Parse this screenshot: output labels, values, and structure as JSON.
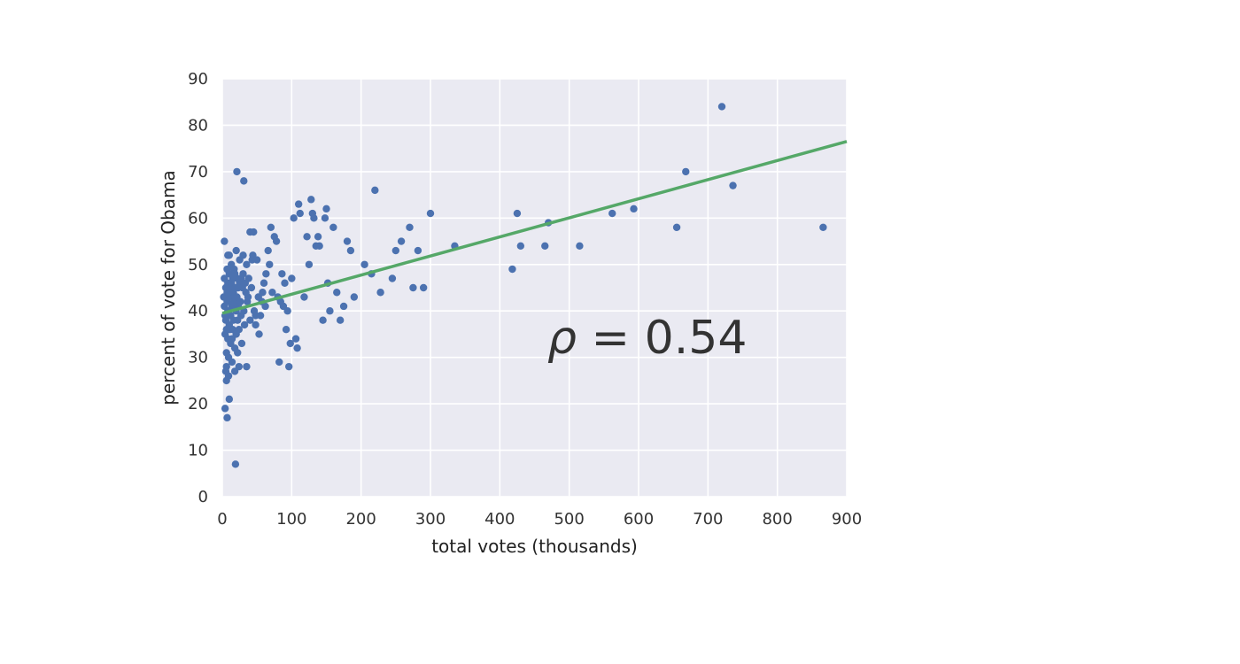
{
  "chart_data": {
    "type": "scatter",
    "title": "",
    "xlabel": "total votes (thousands)",
    "ylabel": "percent of vote for Obama",
    "xlim": [
      0,
      900
    ],
    "ylim": [
      0,
      90
    ],
    "xticks": [
      "0",
      "100",
      "200",
      "300",
      "400",
      "500",
      "600",
      "700",
      "800",
      "900"
    ],
    "yticks": [
      "0",
      "10",
      "20",
      "30",
      "40",
      "50",
      "60",
      "70",
      "80",
      "90"
    ],
    "grid": true,
    "annotation": {
      "symbol": "ρ",
      "text": " = 0.54"
    },
    "colors": {
      "points": "#4c72b0",
      "fit_line": "#55a868",
      "plot_bg": "#eaeaf2",
      "grid": "#ffffff"
    },
    "series": [
      {
        "kind": "points",
        "points": [
          [
            2,
            43
          ],
          [
            3,
            47
          ],
          [
            3,
            41
          ],
          [
            4,
            39
          ],
          [
            4,
            35
          ],
          [
            5,
            45
          ],
          [
            5,
            38
          ],
          [
            6,
            31
          ],
          [
            6,
            28
          ],
          [
            6,
            36
          ],
          [
            7,
            49
          ],
          [
            7,
            44
          ],
          [
            7,
            42
          ],
          [
            8,
            46
          ],
          [
            8,
            40
          ],
          [
            8,
            34
          ],
          [
            9,
            30
          ],
          [
            9,
            26
          ],
          [
            10,
            52
          ],
          [
            10,
            48
          ],
          [
            10,
            37
          ],
          [
            11,
            45
          ],
          [
            11,
            43
          ],
          [
            12,
            39
          ],
          [
            12,
            33
          ],
          [
            13,
            50
          ],
          [
            13,
            46
          ],
          [
            14,
            41
          ],
          [
            14,
            29
          ],
          [
            15,
            47
          ],
          [
            15,
            36
          ],
          [
            16,
            44
          ],
          [
            16,
            38
          ],
          [
            17,
            49
          ],
          [
            17,
            42
          ],
          [
            18,
            32
          ],
          [
            18,
            27
          ],
          [
            19,
            45
          ],
          [
            20,
            40
          ],
          [
            20,
            35
          ],
          [
            21,
            47
          ],
          [
            21,
            43
          ],
          [
            22,
            38
          ],
          [
            22,
            31
          ],
          [
            23,
            41
          ],
          [
            24,
            36
          ],
          [
            24,
            28
          ],
          [
            25,
            46
          ],
          [
            26,
            42
          ],
          [
            27,
            39
          ],
          [
            28,
            33
          ],
          [
            29,
            45
          ],
          [
            30,
            48
          ],
          [
            31,
            40
          ],
          [
            32,
            37
          ],
          [
            34,
            44
          ],
          [
            35,
            50
          ],
          [
            36,
            42
          ],
          [
            38,
            47
          ],
          [
            40,
            38
          ],
          [
            42,
            45
          ],
          [
            44,
            52
          ],
          [
            46,
            40
          ],
          [
            48,
            37
          ],
          [
            50,
            51
          ],
          [
            52,
            43
          ],
          [
            55,
            39
          ],
          [
            58,
            44
          ],
          [
            60,
            46
          ],
          [
            62,
            41
          ],
          [
            3,
            55
          ],
          [
            5,
            27
          ],
          [
            6,
            25
          ],
          [
            8,
            52
          ],
          [
            10,
            21
          ],
          [
            4,
            19
          ],
          [
            7,
            17
          ],
          [
            19,
            7
          ],
          [
            21,
            70
          ],
          [
            31,
            68
          ],
          [
            35,
            28
          ],
          [
            40,
            57
          ],
          [
            45,
            57
          ],
          [
            18,
            48
          ],
          [
            20,
            53
          ],
          [
            25,
            51
          ],
          [
            30,
            52
          ],
          [
            9,
            44
          ],
          [
            11,
            36
          ],
          [
            14,
            34
          ],
          [
            16,
            41
          ],
          [
            23,
            45
          ],
          [
            27,
            47
          ],
          [
            33,
            46
          ],
          [
            37,
            43
          ],
          [
            43,
            51
          ],
          [
            48,
            39
          ],
          [
            53,
            35
          ],
          [
            57,
            42
          ],
          [
            63,
            48
          ],
          [
            66,
            53
          ],
          [
            68,
            50
          ],
          [
            70,
            58
          ],
          [
            72,
            44
          ],
          [
            75,
            56
          ],
          [
            78,
            55
          ],
          [
            80,
            43
          ],
          [
            82,
            29
          ],
          [
            84,
            42
          ],
          [
            86,
            48
          ],
          [
            88,
            41
          ],
          [
            90,
            46
          ],
          [
            92,
            36
          ],
          [
            94,
            40
          ],
          [
            96,
            28
          ],
          [
            98,
            33
          ],
          [
            100,
            47
          ],
          [
            103,
            60
          ],
          [
            106,
            34
          ],
          [
            108,
            32
          ],
          [
            110,
            63
          ],
          [
            112,
            61
          ],
          [
            118,
            43
          ],
          [
            122,
            56
          ],
          [
            125,
            50
          ],
          [
            128,
            64
          ],
          [
            130,
            61
          ],
          [
            132,
            60
          ],
          [
            135,
            54
          ],
          [
            138,
            56
          ],
          [
            140,
            54
          ],
          [
            145,
            38
          ],
          [
            148,
            60
          ],
          [
            150,
            62
          ],
          [
            152,
            46
          ],
          [
            155,
            40
          ],
          [
            160,
            58
          ],
          [
            165,
            44
          ],
          [
            170,
            38
          ],
          [
            175,
            41
          ],
          [
            180,
            55
          ],
          [
            185,
            53
          ],
          [
            190,
            43
          ],
          [
            205,
            50
          ],
          [
            215,
            48
          ],
          [
            220,
            66
          ],
          [
            228,
            44
          ],
          [
            245,
            47
          ],
          [
            250,
            53
          ],
          [
            258,
            55
          ],
          [
            270,
            58
          ],
          [
            275,
            45
          ],
          [
            282,
            53
          ],
          [
            290,
            45
          ],
          [
            300,
            61
          ],
          [
            335,
            54
          ],
          [
            418,
            49
          ],
          [
            425,
            61
          ],
          [
            430,
            54
          ],
          [
            465,
            54
          ],
          [
            470,
            59
          ],
          [
            515,
            54
          ],
          [
            562,
            61
          ],
          [
            593,
            62
          ],
          [
            655,
            58
          ],
          [
            668,
            70
          ],
          [
            720,
            84
          ],
          [
            736,
            67
          ],
          [
            866,
            58
          ]
        ]
      },
      {
        "kind": "fit_line",
        "points": [
          [
            0,
            39.5
          ],
          [
            900,
            76.5
          ]
        ]
      }
    ]
  }
}
